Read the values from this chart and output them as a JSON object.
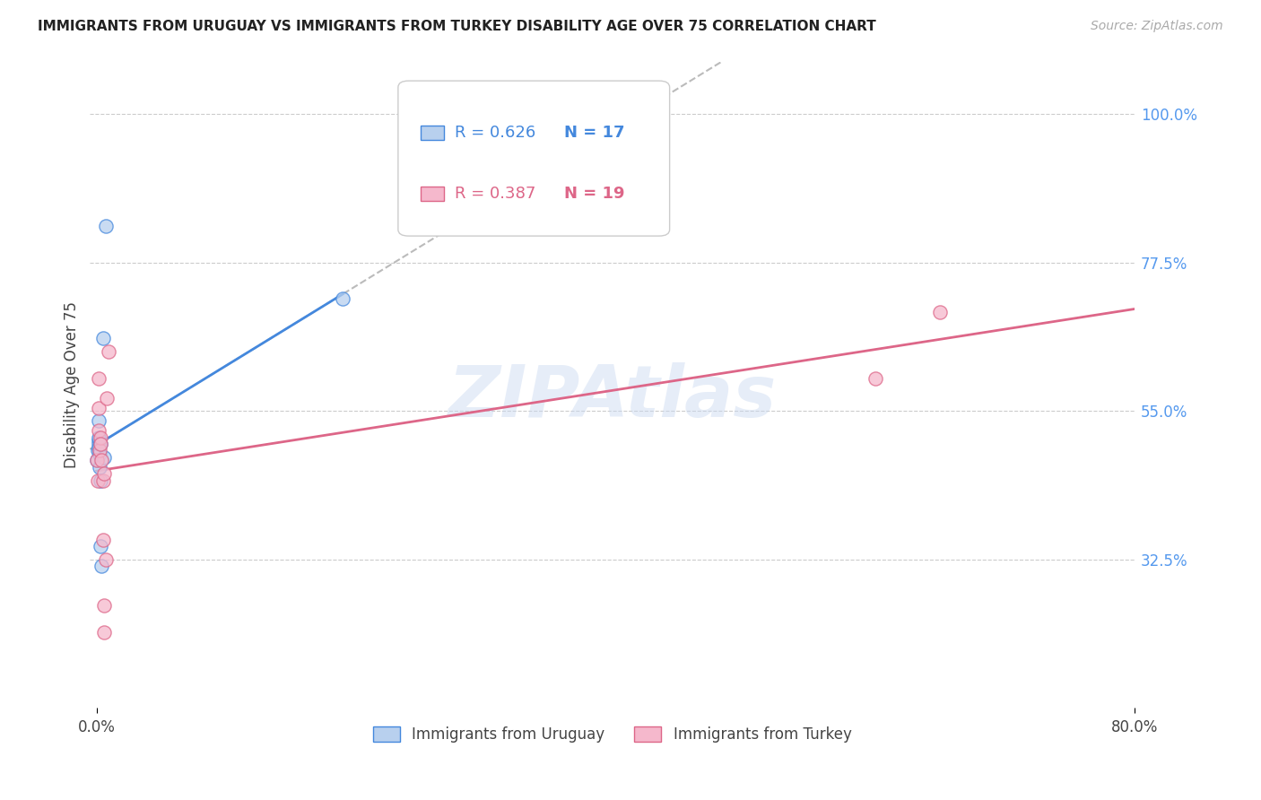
{
  "title": "IMMIGRANTS FROM URUGUAY VS IMMIGRANTS FROM TURKEY DISABILITY AGE OVER 75 CORRELATION CHART",
  "source": "Source: ZipAtlas.com",
  "ylabel": "Disability Age Over 75",
  "y_tick_labels": [
    "100.0%",
    "77.5%",
    "55.0%",
    "32.5%"
  ],
  "y_tick_values": [
    1.0,
    0.775,
    0.55,
    0.325
  ],
  "x_lim": [
    -0.005,
    0.8
  ],
  "y_lim": [
    0.1,
    1.08
  ],
  "legend_r1": "R = 0.626",
  "legend_n1": "N = 17",
  "legend_r2": "R = 0.387",
  "legend_n2": "N = 19",
  "legend_label1": "Immigrants from Uruguay",
  "legend_label2": "Immigrants from Turkey",
  "blue_scatter_color": "#b8d0ee",
  "pink_scatter_color": "#f5b8cc",
  "line_blue": "#4488dd",
  "line_pink": "#dd6688",
  "right_axis_color": "#5599ee",
  "uruguay_x": [
    0.0005,
    0.001,
    0.0015,
    0.0015,
    0.002,
    0.002,
    0.002,
    0.0025,
    0.0025,
    0.003,
    0.003,
    0.003,
    0.004,
    0.005,
    0.006,
    0.007,
    0.19
  ],
  "uruguay_y": [
    0.475,
    0.49,
    0.505,
    0.5,
    0.495,
    0.51,
    0.535,
    0.485,
    0.465,
    0.5,
    0.445,
    0.345,
    0.315,
    0.66,
    0.48,
    0.83,
    0.72
  ],
  "turkey_x": [
    0.0005,
    0.001,
    0.0015,
    0.002,
    0.002,
    0.0025,
    0.003,
    0.003,
    0.004,
    0.005,
    0.005,
    0.006,
    0.006,
    0.006,
    0.007,
    0.008,
    0.009,
    0.6,
    0.65
  ],
  "turkey_y": [
    0.475,
    0.445,
    0.52,
    0.555,
    0.6,
    0.49,
    0.51,
    0.5,
    0.475,
    0.445,
    0.355,
    0.255,
    0.215,
    0.455,
    0.325,
    0.57,
    0.64,
    0.6,
    0.7
  ],
  "watermark": "ZIPAtlas",
  "background_color": "#ffffff",
  "grid_color": "#cccccc",
  "title_color": "#222222",
  "source_color": "#aaaaaa",
  "axis_label_color": "#444444"
}
